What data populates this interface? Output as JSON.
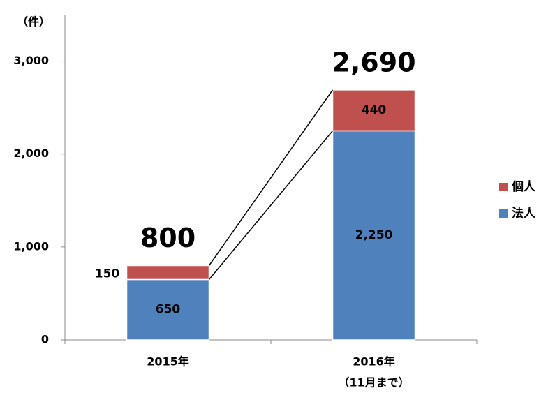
{
  "chart_data": {
    "type": "stacked_bar",
    "y_unit_label": "（件）",
    "categories": [
      "2015年",
      "2016年"
    ],
    "category_sublabels": [
      null,
      "（11月まで）"
    ],
    "series": [
      {
        "name": "法人",
        "color": "#4f81bd",
        "values": [
          650,
          2250
        ],
        "value_labels": [
          "650",
          "2,250"
        ]
      },
      {
        "name": "個人",
        "color": "#c0504d",
        "values": [
          150,
          440
        ],
        "value_labels": [
          "150",
          "440"
        ]
      }
    ],
    "totals": [
      800,
      2690
    ],
    "total_labels": [
      "800",
      "2,690"
    ],
    "ylim": [
      0,
      3500
    ],
    "yticks": [
      0,
      {
        "value": 1000,
        "label": "1,000"
      },
      {
        "value": 2000,
        "label": "2,000"
      },
      {
        "value": 3000,
        "label": "3,000"
      }
    ],
    "legend": "right"
  }
}
